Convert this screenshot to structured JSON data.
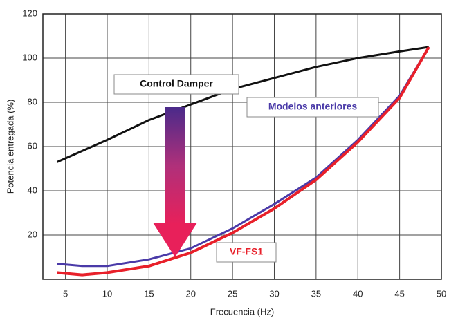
{
  "chart_data": {
    "type": "line",
    "x_label": "Frecuencia (Hz)",
    "y_label": "Potencia entregada (%)",
    "x": [
      4,
      7,
      10,
      15,
      20,
      25,
      30,
      35,
      40,
      45,
      48.5
    ],
    "series": [
      {
        "name": "Control Damper",
        "color": "#111111",
        "values": [
          53,
          58,
          63,
          72,
          79,
          86,
          91,
          96,
          100,
          103,
          105
        ]
      },
      {
        "name": "Modelos anteriores",
        "color": "#4a3aa8",
        "values": [
          7,
          6,
          6,
          9,
          14,
          23,
          34,
          46,
          63,
          83,
          105
        ]
      },
      {
        "name": "VF-FS1",
        "color": "#e8202a",
        "values": [
          3,
          2,
          3,
          6,
          12,
          21,
          32,
          45,
          62,
          82,
          105
        ]
      }
    ],
    "xlim": [
      2.3,
      50
    ],
    "xticks": [
      5,
      10,
      15,
      20,
      25,
      30,
      35,
      40,
      45,
      50
    ],
    "ylim": [
      0,
      120
    ],
    "yticks": [
      20,
      40,
      60,
      80,
      100,
      120
    ],
    "grid": true
  }
}
